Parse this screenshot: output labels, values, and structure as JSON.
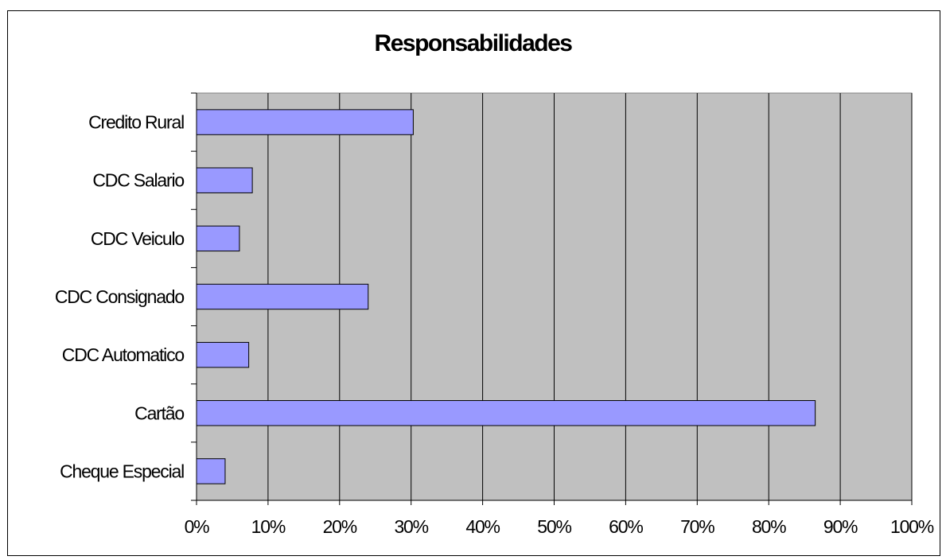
{
  "chart_data": {
    "type": "bar",
    "orientation": "horizontal",
    "title": "Responsabilidades",
    "xlabel": "",
    "ylabel": "",
    "categories": [
      "Cheque Especial",
      "Cartão",
      "CDC Automatico",
      "CDC Consignado",
      "CDC Veiculo",
      "CDC Salario",
      "Credito Rural"
    ],
    "values": [
      4,
      86.5,
      7.3,
      24,
      6,
      7.8,
      30.3
    ],
    "xlim": [
      0,
      100
    ],
    "x_ticks": [
      "0%",
      "10%",
      "20%",
      "30%",
      "40%",
      "50%",
      "60%",
      "70%",
      "80%",
      "90%",
      "100%"
    ],
    "grid": "vertical",
    "legend": "none",
    "colors": {
      "bar": "#9999ff",
      "plot_background": "#c0c0c0",
      "gridline": "#000000"
    }
  }
}
